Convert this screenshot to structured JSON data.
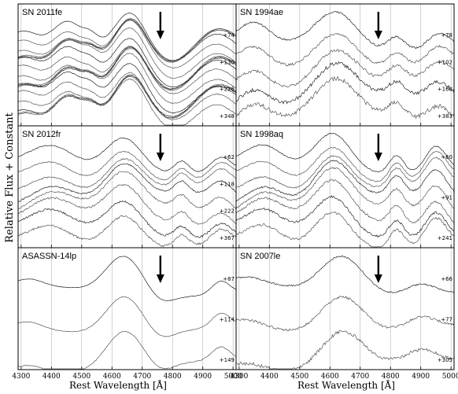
{
  "chart_data": {
    "type": "line",
    "ylabel": "Relative Flux + Constant",
    "xlabel": "Rest Wavelength [Å]",
    "xlim": [
      4290,
      5010
    ],
    "xticks": [
      4300,
      4400,
      4500,
      4600,
      4700,
      4800,
      4900,
      5000
    ],
    "grid": "vertical",
    "marker_wavelength": 4760,
    "panels": [
      {
        "title": "SN 2011fe",
        "epochs": [
          "+74",
          "+130",
          "+226",
          "+348"
        ],
        "n_spectra": 18,
        "profile": "fe",
        "noise": 0.6
      },
      {
        "title": "SN 1994ae",
        "epochs": [
          "+78",
          "+102",
          "+168",
          "+383"
        ],
        "n_spectra": 5,
        "profile": "ae",
        "noise": 2.5
      },
      {
        "title": "SN 2012fr",
        "epochs": [
          "+62",
          "+118",
          "+222",
          "+367"
        ],
        "n_spectra": 8,
        "profile": "fr",
        "noise": 1.2
      },
      {
        "title": "SN 1998aq",
        "epochs": [
          "+60",
          "+91",
          "+241"
        ],
        "n_spectra": 8,
        "profile": "aq",
        "noise": 1.4
      },
      {
        "title": "ASASSN-14lp",
        "epochs": [
          "+87",
          "+114",
          "+149"
        ],
        "n_spectra": 3,
        "profile": "lp",
        "noise": 0.5
      },
      {
        "title": "SN 2007le",
        "epochs": [
          "+66",
          "+77",
          "+305"
        ],
        "n_spectra": 3,
        "profile": "le",
        "noise": 2.0
      }
    ]
  }
}
